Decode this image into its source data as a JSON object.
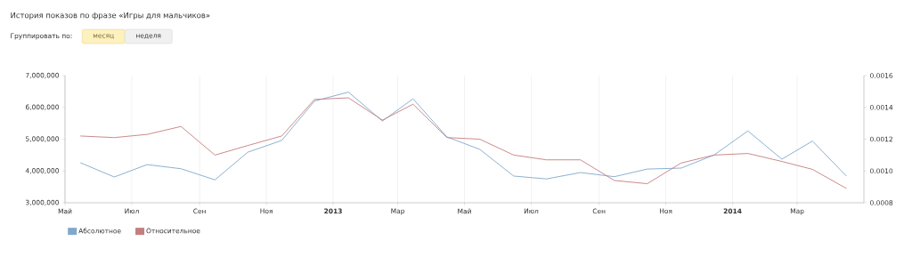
{
  "chart_data": {
    "type": "line",
    "title": "История показов по фразе «Игры для мальчиков»",
    "annotations": [
      "Группировать по:",
      "месяц",
      "неделя"
    ],
    "x": [
      "2012-05-15",
      "2012-06-15",
      "2012-07-15",
      "2012-08-15",
      "2012-09-15",
      "2012-10-15",
      "2012-11-15",
      "2012-12-15",
      "2013-01-15",
      "2013-02-15",
      "2013-03-15",
      "2013-04-15",
      "2013-05-15",
      "2013-06-15",
      "2013-07-15",
      "2013-08-15",
      "2013-09-15",
      "2013-10-15",
      "2013-11-15",
      "2013-12-15",
      "2014-01-15",
      "2014-02-15",
      "2014-03-15",
      "2014-04-15"
    ],
    "series": [
      {
        "name": "Абсолютное",
        "color": "#7fa8cc",
        "values": [
          4260000,
          3810000,
          4200000,
          4070000,
          3720000,
          4590000,
          4960000,
          6200000,
          6480000,
          5570000,
          6270000,
          5070000,
          4680000,
          3840000,
          3750000,
          3950000,
          3820000,
          4060000,
          4090000,
          4500000,
          5260000,
          4370000,
          4940000,
          3840000
        ]
      },
      {
        "name": "Относительное",
        "color": "#c47e7e",
        "axis": "y2",
        "values": [
          0.00122,
          0.00121,
          0.00123,
          0.00128,
          0.0011,
          0.00116,
          0.00122,
          0.00145,
          0.00146,
          0.00132,
          0.00142,
          0.00121,
          0.0012,
          0.0011,
          0.00107,
          0.00107,
          0.00094,
          0.00092,
          0.00105,
          0.0011,
          0.00111,
          0.00106,
          0.00101,
          0.00089
        ]
      }
    ],
    "xlim": [
      "2012-05-01",
      "2014-05-01"
    ],
    "xticks": [
      {
        "value": "2012-05-01",
        "label": "Май"
      },
      {
        "value": "2012-07-01",
        "label": "Июл"
      },
      {
        "value": "2012-09-01",
        "label": "Сен"
      },
      {
        "value": "2012-11-01",
        "label": "Ноя"
      },
      {
        "value": "2013-01-01",
        "label": "2013"
      },
      {
        "value": "2013-03-01",
        "label": "Мар"
      },
      {
        "value": "2013-05-01",
        "label": "Май"
      },
      {
        "value": "2013-07-01",
        "label": "Июл"
      },
      {
        "value": "2013-09-01",
        "label": "Сен"
      },
      {
        "value": "2013-11-01",
        "label": "Ноя"
      },
      {
        "value": "2014-01-01",
        "label": "2014"
      },
      {
        "value": "2014-03-01",
        "label": "Мар"
      }
    ],
    "ylim": [
      3000000,
      7000000
    ],
    "yticks": [
      {
        "value": 3000000,
        "label": "3,000,000"
      },
      {
        "value": 4000000,
        "label": "4,000,000"
      },
      {
        "value": 5000000,
        "label": "5,000,000"
      },
      {
        "value": 6000000,
        "label": "6,000,000"
      },
      {
        "value": 7000000,
        "label": "7,000,000"
      }
    ],
    "y2lim": [
      0.0008,
      0.0016
    ],
    "y2ticks": [
      {
        "value": 0.0008,
        "label": "0.0008"
      },
      {
        "value": 0.001,
        "label": "0.0010"
      },
      {
        "value": 0.0012,
        "label": "0.0012"
      },
      {
        "value": 0.0014,
        "label": "0.0014"
      },
      {
        "value": 0.0016,
        "label": "0.0016"
      }
    ],
    "grid": "x",
    "legend": "bottom left",
    "marker": "none",
    "line_style": "solid"
  }
}
